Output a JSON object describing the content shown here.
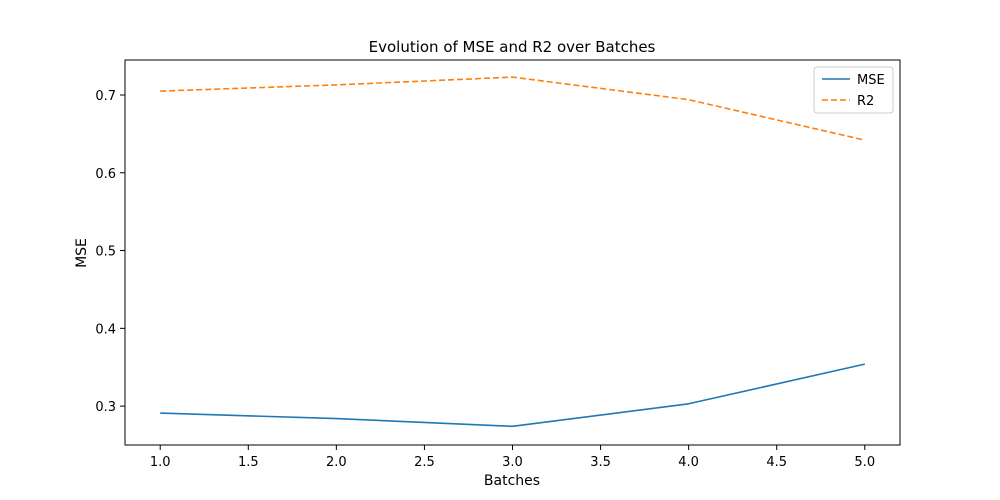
{
  "chart_data": {
    "type": "line",
    "title": "Evolution of MSE and R2 over Batches",
    "xlabel": "Batches",
    "ylabel": "MSE",
    "x": [
      1,
      2,
      3,
      4,
      5
    ],
    "xlim": [
      0.8,
      5.2
    ],
    "ylim": [
      0.25,
      0.745
    ],
    "xticks": [
      "1.0",
      "1.5",
      "2.0",
      "2.5",
      "3.0",
      "3.5",
      "4.0",
      "4.5",
      "5.0"
    ],
    "yticks": [
      "0.3",
      "0.4",
      "0.5",
      "0.6",
      "0.7"
    ],
    "grid": false,
    "legend_position": "top-right",
    "series": [
      {
        "name": "MSE",
        "values": [
          0.291,
          0.284,
          0.274,
          0.303,
          0.354
        ],
        "color": "#1f77b4",
        "style": "solid"
      },
      {
        "name": "R2",
        "values": [
          0.705,
          0.713,
          0.723,
          0.694,
          0.642
        ],
        "color": "#ff7f0e",
        "style": "dashed"
      }
    ]
  }
}
